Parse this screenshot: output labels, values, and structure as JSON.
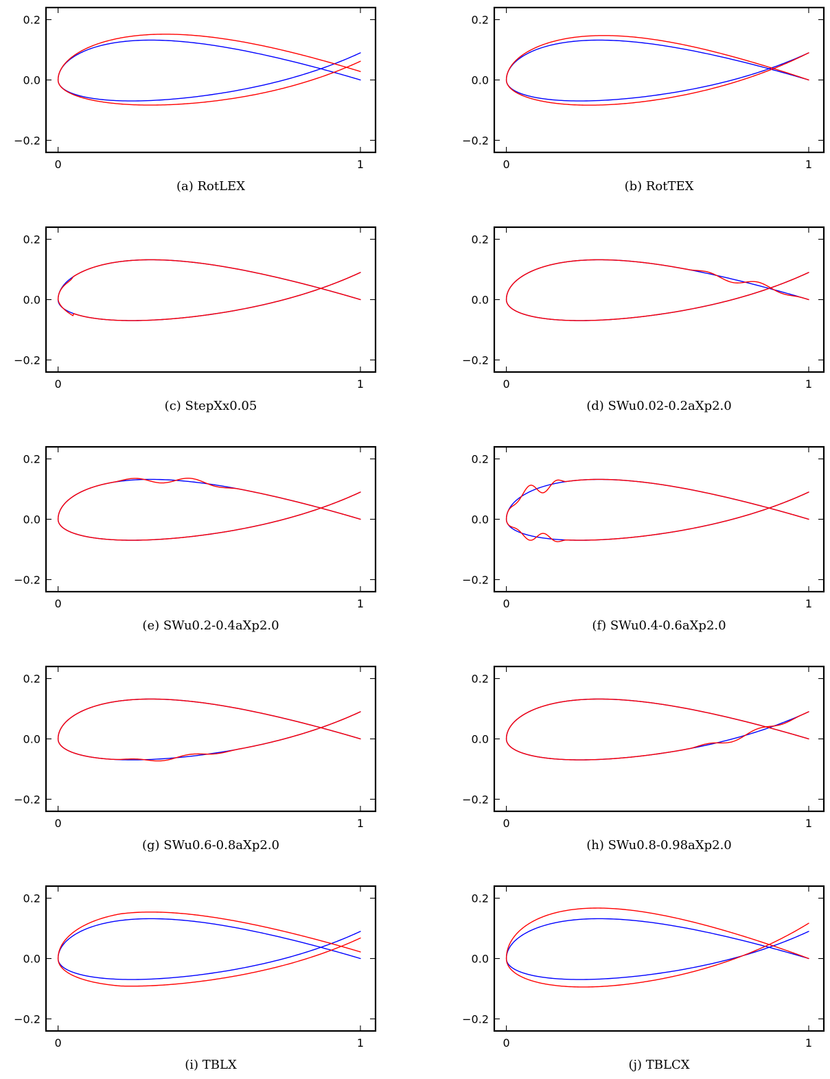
{
  "figure": {
    "colors": {
      "baseline": "#0000ff",
      "modified": "#ff0000",
      "axes": "#000000"
    }
  },
  "chart_data": [
    {
      "type": "line",
      "caption": "(a) RotLEX",
      "transform": "rot_le",
      "param": 0.028,
      "xticks": [
        "0",
        "1"
      ],
      "yticks": [
        "0.2",
        "0.0",
        "−0.2"
      ],
      "xlim": [
        -0.04,
        1.05
      ],
      "ylim": [
        -0.24,
        0.24
      ]
    },
    {
      "type": "line",
      "caption": "(b) RotTEX",
      "transform": "rot_te",
      "param": 0.016,
      "xticks": [
        "0",
        "1"
      ],
      "yticks": [
        "0.2",
        "0.0",
        "−0.2"
      ],
      "xlim": [
        -0.04,
        1.05
      ],
      "ylim": [
        -0.24,
        0.24
      ]
    },
    {
      "type": "line",
      "caption": "(c) StepXx0.05",
      "transform": "step",
      "param": 0.05,
      "xticks": [
        "0",
        "1"
      ],
      "yticks": [
        "0.2",
        "0.0",
        "−0.2"
      ],
      "xlim": [
        -0.04,
        1.05
      ],
      "ylim": [
        -0.24,
        0.24
      ]
    },
    {
      "type": "line",
      "caption": "(d) SWu0.02-0.2aXp2.0",
      "transform": "wave",
      "side": "upper",
      "range": [
        0.6,
        0.98
      ],
      "amp": 0.012,
      "xticks": [
        "0",
        "1"
      ],
      "yticks": [
        "0.2",
        "0.0",
        "−0.2"
      ],
      "xlim": [
        -0.04,
        1.05
      ],
      "ylim": [
        -0.24,
        0.24
      ]
    },
    {
      "type": "line",
      "caption": "(e) SWu0.2-0.4aXp2.0",
      "transform": "wave",
      "side": "upper",
      "range": [
        0.18,
        0.6
      ],
      "amp": 0.012,
      "xticks": [
        "0",
        "1"
      ],
      "yticks": [
        "0.2",
        "0.0",
        "−0.2"
      ],
      "xlim": [
        -0.04,
        1.05
      ],
      "ylim": [
        -0.24,
        0.24
      ]
    },
    {
      "type": "line",
      "caption": "(f) SWu0.4-0.6aXp2.0",
      "transform": "wave",
      "side": "both",
      "range": [
        0.0,
        0.2
      ],
      "amp": 0.014,
      "xticks": [
        "0",
        "1"
      ],
      "yticks": [
        "0.2",
        "0.0",
        "−0.2"
      ],
      "xlim": [
        -0.04,
        1.05
      ],
      "ylim": [
        -0.24,
        0.24
      ]
    },
    {
      "type": "line",
      "caption": "(g) SWu0.6-0.8aXp2.0",
      "transform": "wave",
      "side": "lower",
      "range": [
        0.18,
        0.6
      ],
      "amp": 0.007,
      "xticks": [
        "0",
        "1"
      ],
      "yticks": [
        "0.2",
        "0.0",
        "−0.2"
      ],
      "xlim": [
        -0.04,
        1.05
      ],
      "ylim": [
        -0.24,
        0.24
      ]
    },
    {
      "type": "line",
      "caption": "(h) SWu0.8-0.98aXp2.0",
      "transform": "wave",
      "side": "lower",
      "range": [
        0.6,
        0.98
      ],
      "amp": 0.01,
      "xticks": [
        "0",
        "1"
      ],
      "yticks": [
        "0.2",
        "0.0",
        "−0.2"
      ],
      "xlim": [
        -0.04,
        1.05
      ],
      "ylim": [
        -0.24,
        0.24
      ]
    },
    {
      "type": "line",
      "caption": "(i) TBLX",
      "transform": "shift",
      "param": 0.022,
      "xticks": [
        "0",
        "1"
      ],
      "yticks": [
        "0.2",
        "0.0",
        "−0.2"
      ],
      "xlim": [
        -0.04,
        1.05
      ],
      "ylim": [
        -0.24,
        0.24
      ]
    },
    {
      "type": "line",
      "caption": "(j) TBLCX",
      "transform": "thick",
      "param": 1.3,
      "xticks": [
        "0",
        "1"
      ],
      "yticks": [
        "0.2",
        "0.0",
        "−0.2"
      ],
      "xlim": [
        -0.04,
        1.05
      ],
      "ylim": [
        -0.24,
        0.24
      ]
    }
  ]
}
